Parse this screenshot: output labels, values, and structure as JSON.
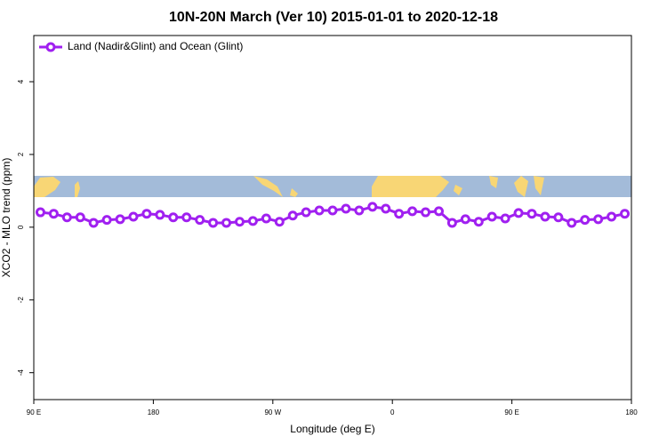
{
  "chart_data": {
    "type": "line",
    "title": "10N-20N March (Ver 10)   2015-01-01 to 2020-12-18",
    "xlabel": "Longitude (deg E)",
    "ylabel": "XCO2 - MLO trend (ppm)",
    "x": [
      95,
      105,
      115,
      125,
      135,
      145,
      155,
      165,
      175,
      185,
      195,
      205,
      215,
      225,
      235,
      245,
      255,
      265,
      275,
      285,
      295,
      305,
      315,
      325,
      335,
      345,
      355,
      365,
      375,
      385,
      395,
      405,
      415,
      425,
      435,
      445,
      455,
      465,
      475,
      485,
      495,
      505,
      515,
      525,
      535
    ],
    "series": [
      {
        "name": "Land (Nadir&Glint) and Ocean (Glint)",
        "color": "#a020f0",
        "values": [
          0.41,
          0.37,
          0.27,
          0.27,
          0.12,
          0.2,
          0.22,
          0.29,
          0.37,
          0.34,
          0.27,
          0.27,
          0.2,
          0.12,
          0.12,
          0.15,
          0.17,
          0.24,
          0.15,
          0.32,
          0.41,
          0.46,
          0.46,
          0.51,
          0.46,
          0.56,
          0.51,
          0.37,
          0.44,
          0.41,
          0.44,
          0.12,
          0.22,
          0.15,
          0.29,
          0.24,
          0.39,
          0.37,
          0.29,
          0.27,
          0.12,
          0.2,
          0.22,
          0.29,
          0.37
        ]
      }
    ],
    "xlim": [
      90,
      540
    ],
    "xticks": [
      {
        "value": 90,
        "label": "90 E"
      },
      180,
      {
        "value": 270,
        "label": "90 W"
      },
      {
        "value": 360,
        "label": "0"
      },
      {
        "value": 450,
        "label": "90 E"
      },
      {
        "value": 540,
        "label": "180"
      }
    ],
    "ylim": [
      -4.74,
      5.27
    ],
    "yticks": [
      4,
      2,
      0,
      -2,
      -4
    ],
    "legend": "top-left"
  }
}
